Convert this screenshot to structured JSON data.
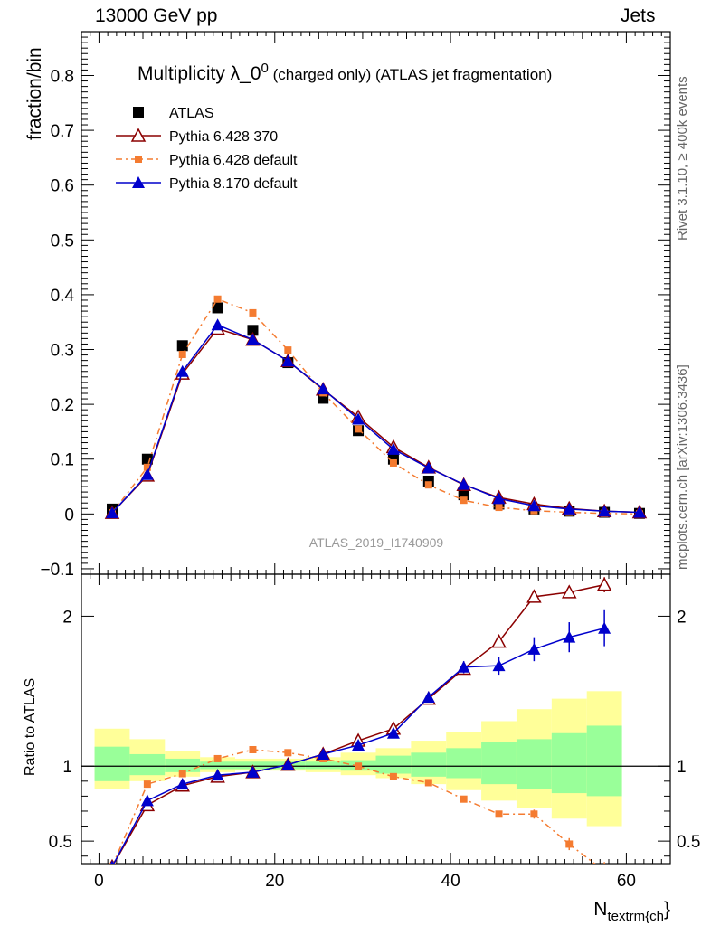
{
  "header": {
    "left": "13000 GeV pp",
    "right": "Jets"
  },
  "side_labels": {
    "rivet": "Rivet 3.1.10, ≥ 400k events",
    "mcplots": "mcplots.cern.ch [arXiv:1306.3436]"
  },
  "colors": {
    "ATLAS": "#000000",
    "Pythia 6.428 370": "#8b0000",
    "Pythia 6.428 default": "#f47b30",
    "Pythia 8.170 default": "#0000cc",
    "band_inner": "#99ff99",
    "band_outer": "#ffff99"
  },
  "chart_data": [
    {
      "type": "line",
      "title": "Multiplicity λ_0⁰ (charged only) (ATLAS jet fragmentation)",
      "title_main": "Multiplicity λ_0",
      "title_sup": "0",
      "title_tail": " (charged only) (ATLAS jet fragmentation)",
      "watermark": "ATLAS_2019_I1740909",
      "ylabel": "fraction/bin",
      "xlim": [
        -2,
        65
      ],
      "ylim": [
        -0.11,
        0.88
      ],
      "yticks": [
        -0.1,
        0,
        0.1,
        0.2,
        0.3,
        0.4,
        0.5,
        0.6,
        0.7,
        0.8
      ],
      "ytick_labels": [
        "−0.1",
        "0",
        "0.1",
        "0.2",
        "0.3",
        "0.4",
        "0.5",
        "0.6",
        "0.7",
        "0.8"
      ],
      "x": [
        1.5,
        5.5,
        9.5,
        13.5,
        17.5,
        21.5,
        25.5,
        29.5,
        33.5,
        37.5,
        41.5,
        45.5,
        49.5,
        53.5,
        57.5,
        61.5
      ],
      "series": [
        {
          "name": "ATLAS",
          "marker": "square",
          "values": [
            0.009,
            0.1,
            0.307,
            0.376,
            0.335,
            0.276,
            0.211,
            0.152,
            0.1,
            0.06,
            0.035,
            0.018,
            0.009,
            0.005,
            0.003,
            0.001
          ]
        },
        {
          "name": "Pythia 6.428 370",
          "marker": "open-triangle",
          "values": [
            0.002,
            0.07,
            0.256,
            0.338,
            0.318,
            0.279,
            0.227,
            0.177,
            0.122,
            0.085,
            0.053,
            0.03,
            0.018,
            0.01,
            0.005,
            0.003
          ]
        },
        {
          "name": "Pythia 6.428 default",
          "marker": "small-square",
          "values": [
            0.002,
            0.085,
            0.291,
            0.392,
            0.367,
            0.299,
            0.221,
            0.155,
            0.093,
            0.053,
            0.025,
            0.012,
            0.006,
            0.003,
            0.001,
            0.0
          ]
        },
        {
          "name": "Pythia 8.170 default",
          "marker": "triangle",
          "values": [
            0.002,
            0.072,
            0.26,
            0.345,
            0.318,
            0.279,
            0.228,
            0.173,
            0.118,
            0.084,
            0.054,
            0.028,
            0.015,
            0.009,
            0.005,
            0.003
          ]
        }
      ]
    },
    {
      "type": "line",
      "ylabel": "Ratio to ATLAS",
      "xlabel_main": "N",
      "xlabel_sub": "textrm{ch",
      "xlabel_tail": "}",
      "xlim": [
        -2,
        65
      ],
      "ylim": [
        0.35,
        2.28
      ],
      "xticks": [
        0,
        20,
        40,
        60
      ],
      "yticks": [
        0.5,
        1,
        2
      ],
      "ytick_labels": [
        "0.5",
        "1",
        "2"
      ],
      "x": [
        1.5,
        5.5,
        9.5,
        13.5,
        17.5,
        21.5,
        25.5,
        29.5,
        33.5,
        37.5,
        41.5,
        45.5,
        49.5,
        53.5,
        57.5
      ],
      "bins": [
        [
          -0.5,
          3.5
        ],
        [
          3.5,
          7.5
        ],
        [
          7.5,
          11.5
        ],
        [
          11.5,
          15.5
        ],
        [
          15.5,
          19.5
        ],
        [
          19.5,
          23.5
        ],
        [
          23.5,
          27.5
        ],
        [
          27.5,
          31.5
        ],
        [
          31.5,
          35.5
        ],
        [
          35.5,
          39.5
        ],
        [
          39.5,
          43.5
        ],
        [
          43.5,
          47.5
        ],
        [
          47.5,
          51.5
        ],
        [
          51.5,
          55.5
        ],
        [
          55.5,
          59.5
        ]
      ],
      "band_outer": [
        [
          0.85,
          1.25
        ],
        [
          0.9,
          1.18
        ],
        [
          0.93,
          1.1
        ],
        [
          0.96,
          1.06
        ],
        [
          0.97,
          1.05
        ],
        [
          0.97,
          1.05
        ],
        [
          0.96,
          1.06
        ],
        [
          0.94,
          1.09
        ],
        [
          0.92,
          1.12
        ],
        [
          0.88,
          1.17
        ],
        [
          0.84,
          1.23
        ],
        [
          0.77,
          1.3
        ],
        [
          0.72,
          1.38
        ],
        [
          0.65,
          1.45
        ],
        [
          0.6,
          1.5
        ]
      ],
      "band_inner": [
        [
          0.9,
          1.13
        ],
        [
          0.94,
          1.08
        ],
        [
          0.96,
          1.05
        ],
        [
          0.98,
          1.03
        ],
        [
          0.98,
          1.03
        ],
        [
          0.98,
          1.03
        ],
        [
          0.98,
          1.03
        ],
        [
          0.97,
          1.04
        ],
        [
          0.95,
          1.07
        ],
        [
          0.93,
          1.09
        ],
        [
          0.92,
          1.12
        ],
        [
          0.88,
          1.16
        ],
        [
          0.85,
          1.18
        ],
        [
          0.82,
          1.22
        ],
        [
          0.8,
          1.27
        ]
      ],
      "series": [
        {
          "name": "Pythia 6.428 370",
          "marker": "open-triangle",
          "values": [
            0.33,
            0.74,
            0.87,
            0.93,
            0.96,
            1.01,
            1.08,
            1.17,
            1.25,
            1.45,
            1.65,
            1.83,
            2.13,
            2.16,
            2.21
          ],
          "errors": [
            0.02,
            0.01,
            0.01,
            0.01,
            0.01,
            0.01,
            0.01,
            0.01,
            0.01,
            0.02,
            0.02,
            0.03,
            0.03,
            0.04,
            0.05
          ]
        },
        {
          "name": "Pythia 6.428 default",
          "marker": "small-square",
          "values": [
            0.33,
            0.88,
            0.95,
            1.05,
            1.11,
            1.09,
            1.05,
            1.0,
            0.93,
            0.89,
            0.78,
            0.68,
            0.68,
            0.48,
            0.3
          ],
          "errors": [
            0.02,
            0.01,
            0.01,
            0.01,
            0.01,
            0.01,
            0.01,
            0.01,
            0.01,
            0.01,
            0.02,
            0.02,
            0.03,
            0.04,
            0.05
          ]
        },
        {
          "name": "Pythia 8.170 default",
          "marker": "triangle",
          "values": [
            0.33,
            0.77,
            0.88,
            0.94,
            0.96,
            1.01,
            1.08,
            1.14,
            1.22,
            1.46,
            1.66,
            1.67,
            1.78,
            1.86,
            1.92
          ],
          "errors": [
            0.02,
            0.02,
            0.01,
            0.01,
            0.01,
            0.01,
            0.01,
            0.01,
            0.02,
            0.03,
            0.04,
            0.06,
            0.08,
            0.1,
            0.12
          ]
        }
      ]
    }
  ]
}
